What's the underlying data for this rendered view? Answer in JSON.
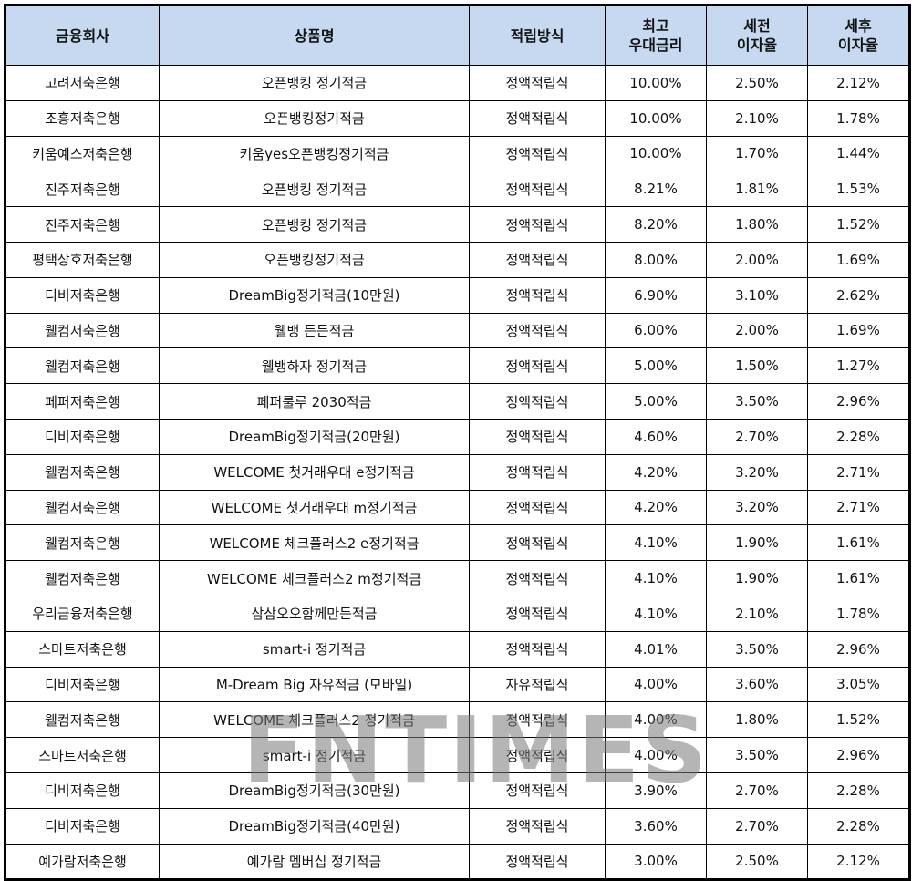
{
  "table": {
    "header": [
      [
        "금융회사"
      ],
      [
        "상품명"
      ],
      [
        "적립방식"
      ],
      [
        "최고",
        "우대금리"
      ],
      [
        "세전",
        "이자율"
      ],
      [
        "세후",
        "이자율"
      ]
    ],
    "rows": [
      [
        "고려저축은행",
        "오픈뱅킹 정기적금",
        "정액적립식",
        "10.00%",
        "2.50%",
        "2.12%"
      ],
      [
        "조흥저축은행",
        "오픈뱅킹정기적금",
        "정액적립식",
        "10.00%",
        "2.10%",
        "1.78%"
      ],
      [
        "키움예스저축은행",
        "키움yes오픈뱅킹정기적금",
        "정액적립식",
        "10.00%",
        "1.70%",
        "1.44%"
      ],
      [
        "진주저축은행",
        "오픈뱅킹 정기적금",
        "정액적립식",
        "8.21%",
        "1.81%",
        "1.53%"
      ],
      [
        "진주저축은행",
        "오픈뱅킹 정기적금",
        "정액적립식",
        "8.20%",
        "1.80%",
        "1.52%"
      ],
      [
        "평택상호저축은행",
        "오픈뱅킹정기적금",
        "정액적립식",
        "8.00%",
        "2.00%",
        "1.69%"
      ],
      [
        "디비저축은행",
        "DreamBig정기적금(10만원)",
        "정액적립식",
        "6.90%",
        "3.10%",
        "2.62%"
      ],
      [
        "웰컴저축은행",
        "웰뱅 든든적금",
        "정액적립식",
        "6.00%",
        "2.00%",
        "1.69%"
      ],
      [
        "웰컴저축은행",
        "웰뱅하자 정기적금",
        "정액적립식",
        "5.00%",
        "1.50%",
        "1.27%"
      ],
      [
        "페퍼저축은행",
        "페퍼룰루 2030적금",
        "정액적립식",
        "5.00%",
        "3.50%",
        "2.96%"
      ],
      [
        "디비저축은행",
        "DreamBig정기적금(20만원)",
        "정액적립식",
        "4.60%",
        "2.70%",
        "2.28%"
      ],
      [
        "웰컴저축은행",
        "WELCOME 첫거래우대 e정기적금",
        "정액적립식",
        "4.20%",
        "3.20%",
        "2.71%"
      ],
      [
        "웰컴저축은행",
        "WELCOME 첫거래우대 m정기적금",
        "정액적립식",
        "4.20%",
        "3.20%",
        "2.71%"
      ],
      [
        "웰컴저축은행",
        "WELCOME 체크플러스2 e정기적금",
        "정액적립식",
        "4.10%",
        "1.90%",
        "1.61%"
      ],
      [
        "웰컴저축은행",
        "WELCOME 체크플러스2 m정기적금",
        "정액적립식",
        "4.10%",
        "1.90%",
        "1.61%"
      ],
      [
        "우리금융저축은행",
        "삼삼오오함께만든적금",
        "정액적립식",
        "4.10%",
        "2.10%",
        "1.78%"
      ],
      [
        "스마트저축은행",
        "smart-i 정기적금",
        "정액적립식",
        "4.01%",
        "3.50%",
        "2.96%"
      ],
      [
        "디비저축은행",
        "M-Dream Big 자유적금 (모바일)",
        "자유적립식",
        "4.00%",
        "3.60%",
        "3.05%"
      ],
      [
        "웰컴저축은행",
        "WELCOME 체크플러스2 정기적금",
        "정액적립식",
        "4.00%",
        "1.80%",
        "1.52%"
      ],
      [
        "스마트저축은행",
        "smart-i 정기적금",
        "정액적립식",
        "4.00%",
        "3.50%",
        "2.96%"
      ],
      [
        "디비저축은행",
        "DreamBig정기적금(30만원)",
        "정액적립식",
        "3.90%",
        "2.70%",
        "2.28%"
      ],
      [
        "디비저축은행",
        "DreamBig정기적금(40만원)",
        "정액적립식",
        "3.60%",
        "2.70%",
        "2.28%"
      ],
      [
        "예가람저축은행",
        "예가람 멤버십 정기적금",
        "정액적립식",
        "3.00%",
        "2.50%",
        "2.12%"
      ]
    ]
  },
  "watermark": "FNTIMES"
}
